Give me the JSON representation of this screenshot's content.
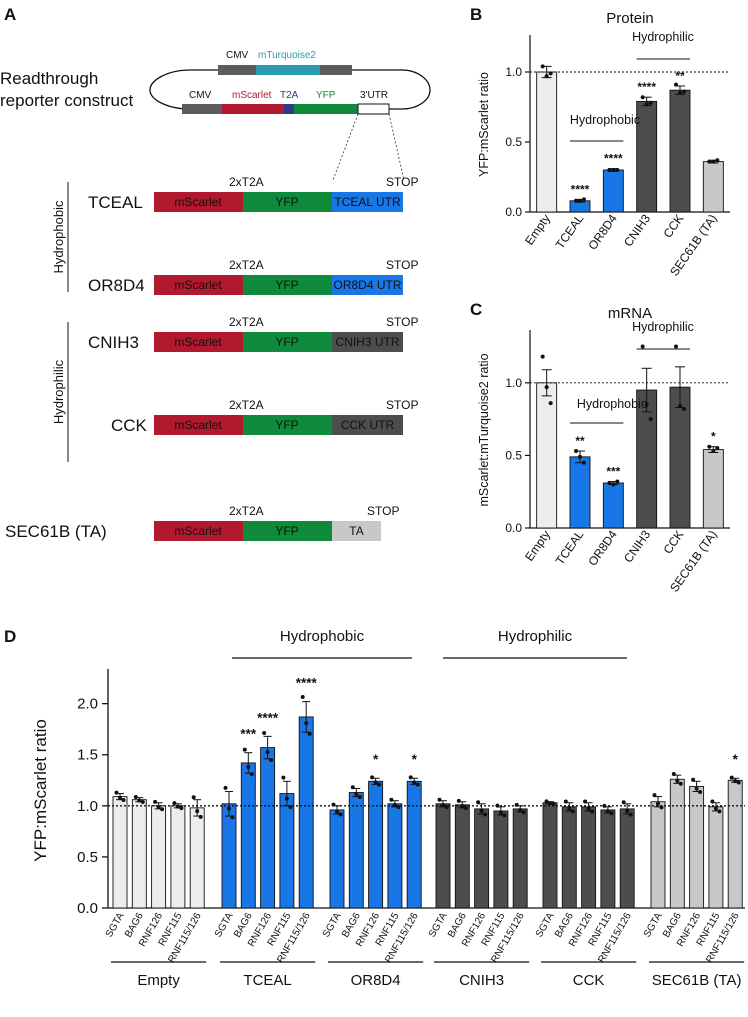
{
  "colors": {
    "mscarlet": "#B0192E",
    "yfp": "#0E8A3A",
    "blue": "#1976E6",
    "darkgrey": "#4D4D4D",
    "lightgrey": "#C8C8C8",
    "vlightgrey": "#EDEDED",
    "backbone": "#5C5C5C",
    "cmvteal": "#2A9CB0",
    "t2a": "#2B3A8A"
  },
  "panelA": {
    "label": "A",
    "construct_label_line1": "Readthrough",
    "construct_label_line2": "reporter construct",
    "top_cmv": "CMV",
    "top_gene": "mTurquoise2",
    "bot_cmv": "CMV",
    "bot_gene1": "mScarlet",
    "bot_t2a": "T2A",
    "bot_yfp": "YFP",
    "bot_utr": "3'UTR",
    "group_hydrophobic": "Hydrophobic",
    "group_hydrophilic": "Hydrophilic",
    "t2a_label": "2xT2A",
    "stop_label": "STOP",
    "seg_mscarlet": "mScarlet",
    "seg_yfp": "YFP",
    "constructs": [
      {
        "name": "TCEAL",
        "utr": "TCEAL UTR"
      },
      {
        "name": "OR8D4",
        "utr": "OR8D4 UTR"
      },
      {
        "name": "CNIH3",
        "utr": "CNIH3 UTR"
      },
      {
        "name": "CCK",
        "utr": "CCK UTR"
      },
      {
        "name": "SEC61B (TA)",
        "utr": "TA"
      }
    ]
  },
  "panelD_groups": {
    "hydrophobic": "Hydrophobic",
    "hydrophilic": "Hydrophilic"
  },
  "chart_data": [
    {
      "panel": "B",
      "type": "bar",
      "title": "Protein",
      "ylabel": "YFP:mScarlet ratio",
      "ylim": [
        0,
        1.25
      ],
      "yticks": [
        "0.0",
        "0.5",
        "1.0"
      ],
      "categories": [
        "Empty",
        "TCEAL",
        "OR8D4",
        "CNIH3",
        "CCK",
        "SEC61B (TA)"
      ],
      "values": [
        1.0,
        0.08,
        0.3,
        0.79,
        0.87,
        0.36
      ],
      "errors": [
        0.04,
        0.01,
        0.01,
        0.03,
        0.03,
        0.01
      ],
      "points": [
        [
          1.04,
          0.97,
          0.99
        ],
        [
          0.08,
          0.08,
          0.09
        ],
        [
          0.3,
          0.3,
          0.3
        ],
        [
          0.82,
          0.77,
          0.78
        ],
        [
          0.91,
          0.85,
          0.86
        ],
        [
          0.36,
          0.36,
          0.37
        ]
      ],
      "stars": [
        "",
        "****",
        "****",
        "****",
        "**",
        ""
      ],
      "reference_line": 1.0,
      "annotations": [
        {
          "text": "Hydrophobic",
          "from": 1,
          "to": 2
        },
        {
          "text": "Hydrophilic",
          "from": 3,
          "to": 4
        }
      ]
    },
    {
      "panel": "C",
      "type": "bar",
      "title": "mRNA",
      "ylabel": "mScarlet:mTurquoise2 ratio",
      "ylim": [
        0,
        1.35
      ],
      "yticks": [
        "0.0",
        "0.5",
        "1.0"
      ],
      "categories": [
        "Empty",
        "TCEAL",
        "OR8D4",
        "CNIH3",
        "CCK",
        "SEC61B (TA)"
      ],
      "values": [
        1.0,
        0.49,
        0.31,
        0.95,
        0.97,
        0.54
      ],
      "errors": [
        0.09,
        0.04,
        0.01,
        0.15,
        0.14,
        0.02
      ],
      "points": [
        [
          1.18,
          0.97,
          0.86
        ],
        [
          0.53,
          0.49,
          0.45
        ],
        [
          0.31,
          0.3,
          0.32
        ],
        [
          1.25,
          0.85,
          0.75
        ],
        [
          1.25,
          0.84,
          0.82
        ],
        [
          0.56,
          0.53,
          0.55
        ]
      ],
      "stars": [
        "",
        "**",
        "***",
        "",
        "",
        "*"
      ],
      "reference_line": 1.0,
      "annotations": [
        {
          "text": "Hydrophobic",
          "from": 1,
          "to": 2
        },
        {
          "text": "Hydrophilic",
          "from": 3,
          "to": 4
        }
      ]
    },
    {
      "panel": "D",
      "type": "bar",
      "title": "",
      "ylabel": "YFP:mScarlet ratio",
      "ylim": [
        0,
        2.3
      ],
      "yticks": [
        "0.0",
        "0.5",
        "1.0",
        "1.5",
        "2.0"
      ],
      "subcategories": [
        "SGTA",
        "BAG6",
        "RNF126",
        "RNF115",
        "RNF115/126"
      ],
      "groups": [
        "Empty",
        "TCEAL",
        "OR8D4",
        "CNIH3",
        "CCK",
        "SEC61B (TA)"
      ],
      "reference_line": 1.0,
      "values": [
        [
          1.09,
          1.06,
          1.0,
          1.0,
          0.98
        ],
        [
          1.02,
          1.42,
          1.57,
          1.12,
          1.87
        ],
        [
          0.96,
          1.13,
          1.24,
          1.02,
          1.24
        ],
        [
          1.02,
          1.01,
          0.97,
          0.95,
          0.97
        ],
        [
          1.03,
          0.99,
          0.99,
          0.96,
          0.97
        ],
        [
          1.04,
          1.26,
          1.19,
          0.99,
          1.25
        ]
      ],
      "errors": [
        [
          0.03,
          0.02,
          0.03,
          0.02,
          0.08
        ],
        [
          0.12,
          0.1,
          0.11,
          0.12,
          0.15
        ],
        [
          0.04,
          0.04,
          0.03,
          0.03,
          0.03
        ],
        [
          0.03,
          0.03,
          0.05,
          0.04,
          0.03
        ],
        [
          0.01,
          0.04,
          0.04,
          0.03,
          0.05
        ],
        [
          0.05,
          0.04,
          0.05,
          0.04,
          0.02
        ]
      ],
      "stars": [
        [
          "",
          "",
          "",
          "",
          ""
        ],
        [
          "",
          "***",
          "****",
          "",
          "****"
        ],
        [
          "",
          "",
          "*",
          "",
          "*"
        ],
        [
          "",
          "",
          "",
          "",
          ""
        ],
        [
          "",
          "",
          "",
          "",
          ""
        ],
        [
          "",
          "",
          "",
          "",
          "*"
        ]
      ]
    }
  ]
}
